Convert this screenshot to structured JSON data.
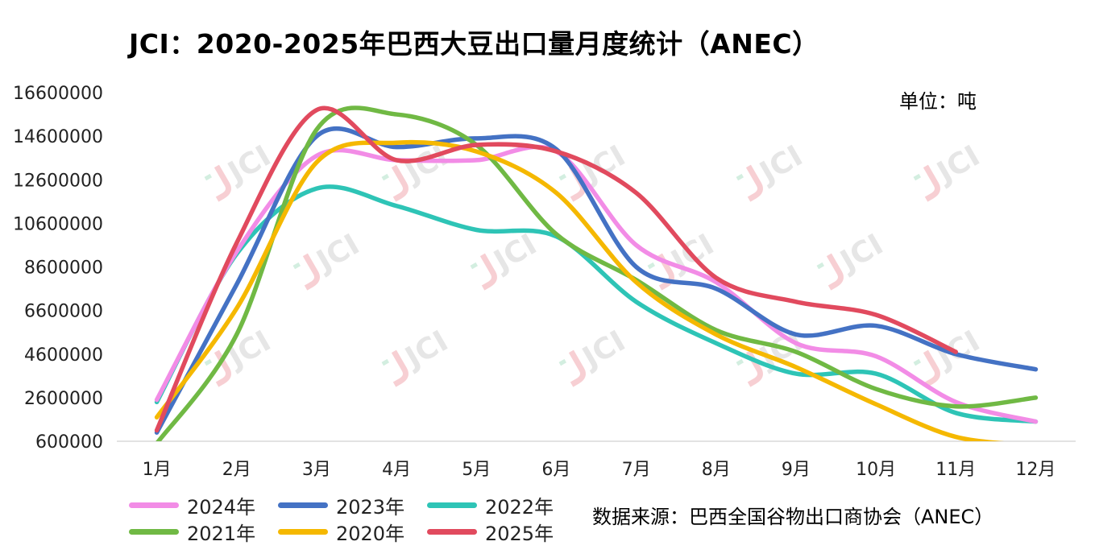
{
  "title": "JCI：2020-2025年巴西大豆出口量月度统计（ANEC）",
  "unit_label": "单位：吨",
  "source_label": "数据来源：巴西全国谷物出口商协会（ANEC）",
  "watermark_text": "JCI",
  "chart_data": {
    "type": "line",
    "categories": [
      "1月",
      "2月",
      "3月",
      "4月",
      "5月",
      "6月",
      "7月",
      "8月",
      "9月",
      "10月",
      "11月",
      "12月"
    ],
    "y_ticks": [
      "16600000",
      "14600000",
      "12600000",
      "10600000",
      "8600000",
      "6600000",
      "4600000",
      "2600000",
      "600000"
    ],
    "ylim": [
      600000,
      16600000
    ],
    "grid": false,
    "legend_position": "bottom",
    "series": [
      {
        "name": "2024年",
        "color": "#F28CE6",
        "values": [
          2500000,
          9300000,
          13700000,
          13500000,
          13500000,
          13900000,
          9600000,
          7900000,
          5100000,
          4500000,
          2400000,
          1500000
        ]
      },
      {
        "name": "2023年",
        "color": "#4472C4",
        "values": [
          1000000,
          7800000,
          14600000,
          14100000,
          14500000,
          14000000,
          8600000,
          7600000,
          5500000,
          5900000,
          4600000,
          3900000
        ]
      },
      {
        "name": "2022年",
        "color": "#2EC4B6",
        "values": [
          2400000,
          9200000,
          12200000,
          11400000,
          10300000,
          10000000,
          7000000,
          5100000,
          3700000,
          3700000,
          1900000,
          1500000
        ]
      },
      {
        "name": "2021年",
        "color": "#70B944",
        "values": [
          500000,
          5500000,
          14900000,
          15600000,
          14200000,
          10100000,
          8000000,
          5700000,
          4700000,
          3000000,
          2200000,
          2600000
        ]
      },
      {
        "name": "2020年",
        "color": "#F5B800",
        "values": [
          1700000,
          6700000,
          13400000,
          14300000,
          13900000,
          12000000,
          7900000,
          5500000,
          4000000,
          2300000,
          800000,
          400000
        ]
      },
      {
        "name": "2025年",
        "color": "#E14A5E",
        "values": [
          1100000,
          9700000,
          15800000,
          13500000,
          14200000,
          13900000,
          12000000,
          8100000,
          7000000,
          6400000,
          4700000,
          null
        ]
      }
    ]
  }
}
